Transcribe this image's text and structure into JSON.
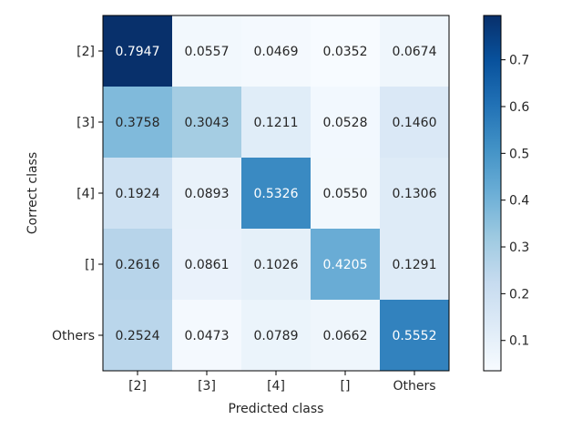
{
  "chart_data": {
    "type": "heatmap",
    "title": "",
    "xlabel": "Predicted class",
    "ylabel": "Correct class",
    "x_categories": [
      "[2]",
      "[3]",
      "[4]",
      "[]",
      "Others"
    ],
    "y_categories": [
      "[2]",
      "[3]",
      "[4]",
      "[]",
      "Others"
    ],
    "values": [
      [
        0.7947,
        0.0557,
        0.0469,
        0.0352,
        0.0674
      ],
      [
        0.3758,
        0.3043,
        0.1211,
        0.0528,
        0.146
      ],
      [
        0.1924,
        0.0893,
        0.5326,
        0.055,
        0.1306
      ],
      [
        0.2616,
        0.0861,
        0.1026,
        0.4205,
        0.1291
      ],
      [
        0.2524,
        0.0473,
        0.0789,
        0.0662,
        0.5552
      ]
    ],
    "value_labels": [
      [
        "0.7947",
        "0.0557",
        "0.0469",
        "0.0352",
        "0.0674"
      ],
      [
        "0.3758",
        "0.3043",
        "0.1211",
        "0.0528",
        "0.1460"
      ],
      [
        "0.1924",
        "0.0893",
        "0.5326",
        "0.0550",
        "0.1306"
      ],
      [
        "0.2616",
        "0.0861",
        "0.1026",
        "0.4205",
        "0.1291"
      ],
      [
        "0.2524",
        "0.0473",
        "0.0789",
        "0.0662",
        "0.5552"
      ]
    ],
    "colormap": "Blues",
    "colorbar": {
      "range": [
        0.0352,
        0.7947
      ],
      "ticks": [
        0.1,
        0.2,
        0.3,
        0.4,
        0.5,
        0.6,
        0.7
      ],
      "tick_labels": [
        "0.1",
        "0.2",
        "0.3",
        "0.4",
        "0.5",
        "0.6",
        "0.7"
      ]
    },
    "colors": {
      "low": "#f7fbff",
      "high": "#08306b",
      "text_dark": "#262626",
      "text_light": "#ffffff",
      "axis": "#000000"
    }
  }
}
